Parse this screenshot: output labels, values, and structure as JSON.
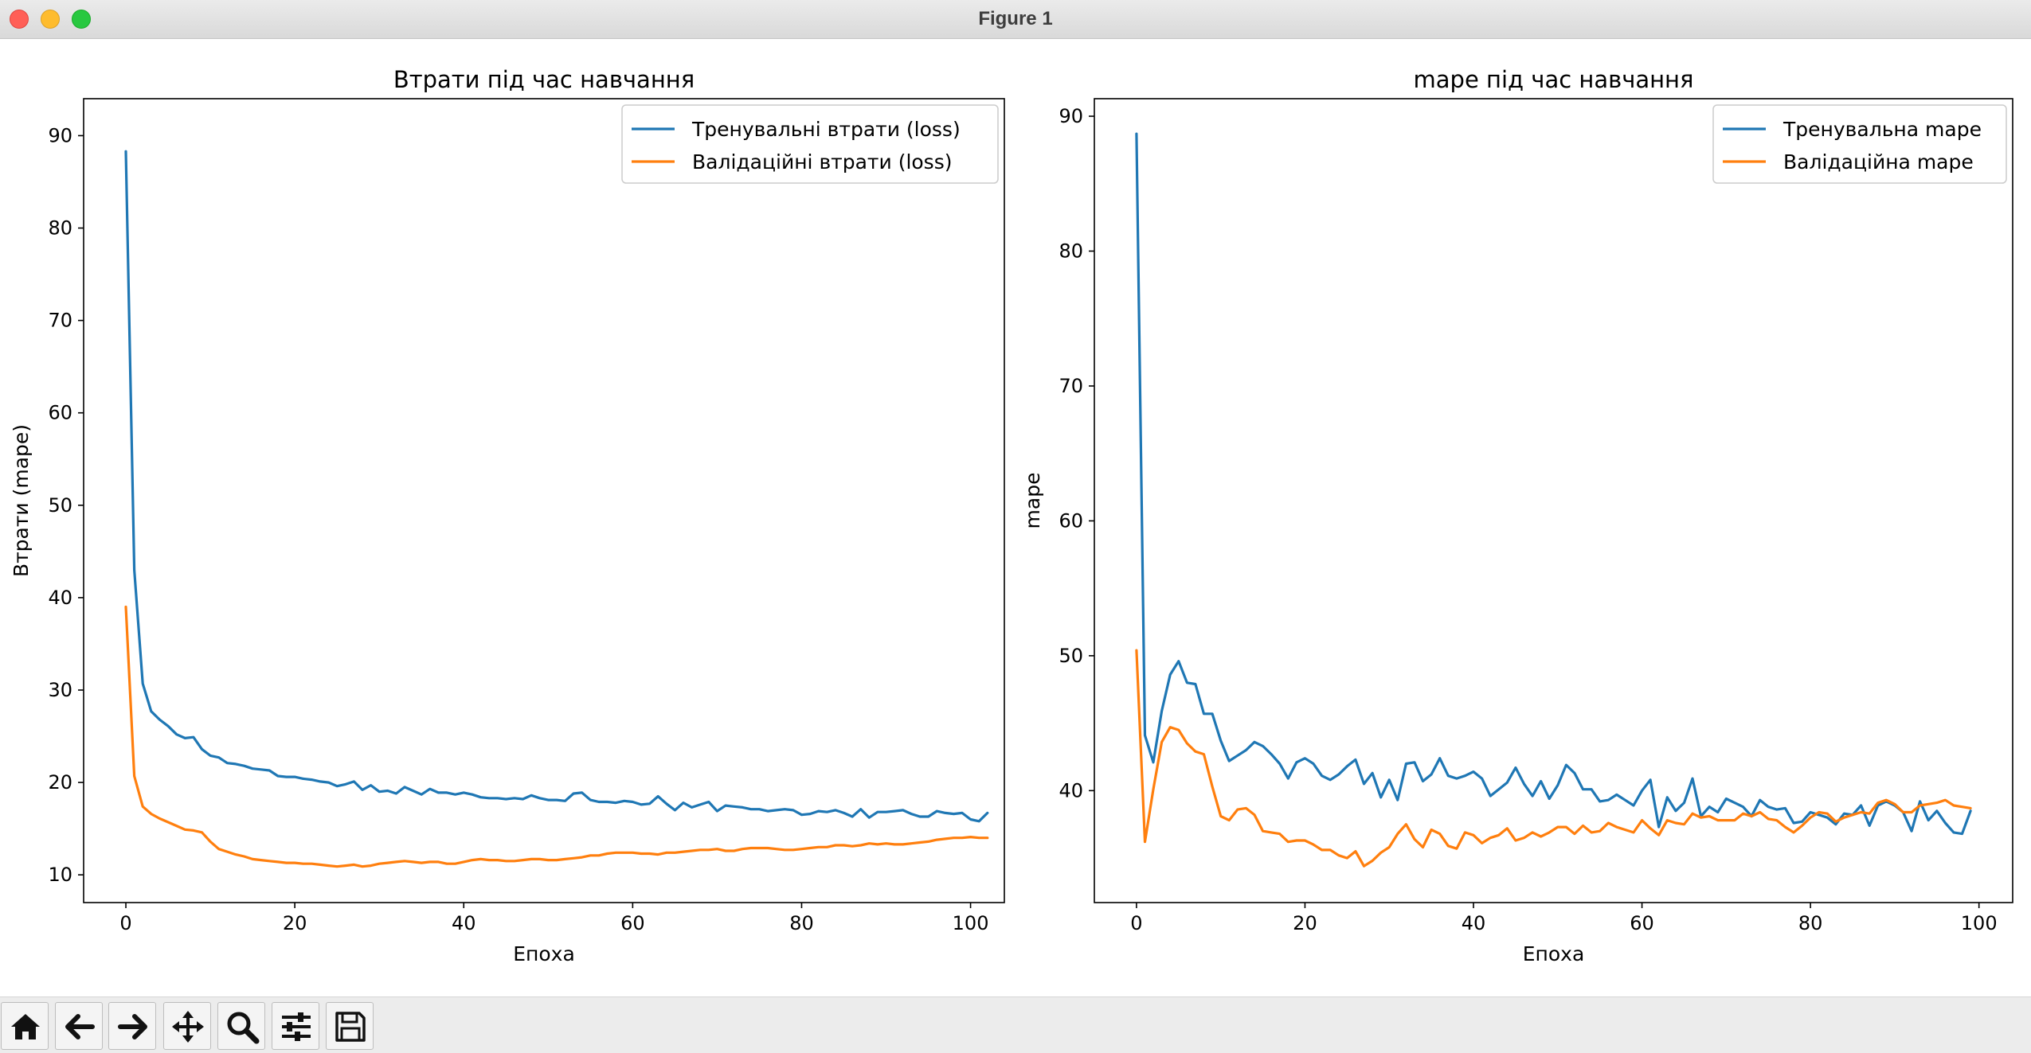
{
  "window": {
    "title": "Figure 1"
  },
  "toolbar": [
    {
      "name": "home-button",
      "icon": "home-icon"
    },
    {
      "name": "back-button",
      "icon": "arrow-left-icon"
    },
    {
      "name": "forward-button",
      "icon": "arrow-right-icon"
    },
    {
      "name": "pan-button",
      "icon": "move-icon"
    },
    {
      "name": "zoom-button",
      "icon": "search-icon"
    },
    {
      "name": "configure-subplots-button",
      "icon": "sliders-icon"
    },
    {
      "name": "save-button",
      "icon": "save-icon"
    }
  ],
  "chart_data": [
    {
      "type": "line",
      "title": "Втрати під час навчання",
      "xlabel": "Епоха",
      "ylabel": "Втрати (mape)",
      "xlim": [
        -5,
        104
      ],
      "ylim": [
        7,
        94
      ],
      "xticks": [
        0,
        20,
        40,
        60,
        80,
        100
      ],
      "yticks": [
        10,
        20,
        30,
        40,
        50,
        60,
        70,
        80,
        90
      ],
      "legend": "top-right",
      "grid": false,
      "x_start": 0,
      "series": [
        {
          "name": "Тренувальні втрати (loss)",
          "color": "#1f77b4",
          "values": [
            88.3,
            43.0,
            30.7,
            27.7,
            26.8,
            26.1,
            25.2,
            24.8,
            24.9,
            23.6,
            22.9,
            22.7,
            22.1,
            22.0,
            21.8,
            21.5,
            21.4,
            21.3,
            20.7,
            20.6,
            20.6,
            20.4,
            20.3,
            20.1,
            20.0,
            19.6,
            19.8,
            20.1,
            19.2,
            19.7,
            19.0,
            19.1,
            18.8,
            19.5,
            19.1,
            18.7,
            19.3,
            18.9,
            18.9,
            18.7,
            18.9,
            18.7,
            18.4,
            18.3,
            18.3,
            18.2,
            18.3,
            18.2,
            18.6,
            18.3,
            18.1,
            18.1,
            18.0,
            18.8,
            18.9,
            18.1,
            17.9,
            17.9,
            17.8,
            18.0,
            17.9,
            17.6,
            17.7,
            18.5,
            17.7,
            17.0,
            17.8,
            17.3,
            17.6,
            17.9,
            16.9,
            17.5,
            17.4,
            17.3,
            17.1,
            17.1,
            16.9,
            17.0,
            17.1,
            17.0,
            16.5,
            16.6,
            16.9,
            16.8,
            17.0,
            16.7,
            16.3,
            17.1,
            16.2,
            16.8,
            16.8,
            16.9,
            17.0,
            16.6,
            16.3,
            16.3,
            16.9,
            16.7,
            16.6,
            16.7,
            16.0,
            15.8,
            16.7
          ]
        },
        {
          "name": "Валідаційні втрати (loss)",
          "color": "#ff7f0e",
          "values": [
            39.0,
            20.7,
            17.4,
            16.6,
            16.1,
            15.7,
            15.3,
            14.9,
            14.8,
            14.6,
            13.6,
            12.8,
            12.5,
            12.2,
            12.0,
            11.7,
            11.6,
            11.5,
            11.4,
            11.3,
            11.3,
            11.2,
            11.2,
            11.1,
            11.0,
            10.9,
            11.0,
            11.1,
            10.9,
            11.0,
            11.2,
            11.3,
            11.4,
            11.5,
            11.4,
            11.3,
            11.4,
            11.4,
            11.2,
            11.2,
            11.4,
            11.6,
            11.7,
            11.6,
            11.6,
            11.5,
            11.5,
            11.6,
            11.7,
            11.7,
            11.6,
            11.6,
            11.7,
            11.8,
            11.9,
            12.1,
            12.1,
            12.3,
            12.4,
            12.4,
            12.4,
            12.3,
            12.3,
            12.2,
            12.4,
            12.4,
            12.5,
            12.6,
            12.7,
            12.7,
            12.8,
            12.6,
            12.6,
            12.8,
            12.9,
            12.9,
            12.9,
            12.8,
            12.7,
            12.7,
            12.8,
            12.9,
            13.0,
            13.0,
            13.2,
            13.2,
            13.1,
            13.2,
            13.4,
            13.3,
            13.4,
            13.3,
            13.3,
            13.4,
            13.5,
            13.6,
            13.8,
            13.9,
            14.0,
            14.0,
            14.1,
            14.0,
            14.0
          ]
        }
      ]
    },
    {
      "type": "line",
      "title": "mape під час навчання",
      "xlabel": "Епоха",
      "ylabel": "mape",
      "xlim": [
        -5,
        104
      ],
      "ylim": [
        31.7,
        91.3
      ],
      "xticks": [
        0,
        20,
        40,
        60,
        80,
        100
      ],
      "yticks": [
        40,
        50,
        60,
        70,
        80,
        90
      ],
      "legend": "top-right",
      "grid": false,
      "x_start": 0,
      "series": [
        {
          "name": "Тренувальна mape",
          "color": "#1f77b4",
          "values": [
            88.7,
            44.1,
            42.1,
            45.9,
            48.6,
            49.6,
            48.0,
            47.9,
            45.7,
            45.7,
            43.7,
            42.2,
            42.6,
            43.0,
            43.6,
            43.3,
            42.7,
            42.0,
            40.9,
            42.1,
            42.4,
            42.0,
            41.1,
            40.8,
            41.2,
            41.8,
            42.3,
            40.5,
            41.3,
            39.5,
            40.8,
            39.3,
            42.0,
            42.1,
            40.7,
            41.2,
            42.4,
            41.1,
            40.9,
            41.1,
            41.4,
            40.9,
            39.6,
            40.1,
            40.6,
            41.7,
            40.5,
            39.6,
            40.7,
            39.4,
            40.4,
            41.9,
            41.3,
            40.1,
            40.1,
            39.2,
            39.3,
            39.7,
            39.3,
            38.9,
            40.0,
            40.8,
            37.3,
            39.5,
            38.5,
            39.1,
            40.9,
            38.1,
            38.8,
            38.4,
            39.4,
            39.1,
            38.8,
            38.1,
            39.3,
            38.8,
            38.6,
            38.7,
            37.6,
            37.7,
            38.4,
            38.2,
            38.0,
            37.5,
            38.3,
            38.2,
            38.9,
            37.4,
            38.9,
            39.2,
            38.9,
            38.4,
            37.0,
            39.2,
            37.8,
            38.5,
            37.6,
            36.9,
            36.8,
            38.5
          ]
        },
        {
          "name": "Валідаційна mape",
          "color": "#ff7f0e",
          "values": [
            50.4,
            36.2,
            40.1,
            43.6,
            44.7,
            44.5,
            43.5,
            42.9,
            42.7,
            40.3,
            38.1,
            37.8,
            38.6,
            38.7,
            38.2,
            37.0,
            36.9,
            36.8,
            36.2,
            36.3,
            36.3,
            36.0,
            35.6,
            35.6,
            35.2,
            35.0,
            35.5,
            34.4,
            34.8,
            35.4,
            35.8,
            36.8,
            37.5,
            36.4,
            35.8,
            37.1,
            36.8,
            35.9,
            35.7,
            36.9,
            36.7,
            36.1,
            36.5,
            36.7,
            37.2,
            36.3,
            36.5,
            36.9,
            36.6,
            36.9,
            37.3,
            37.3,
            36.8,
            37.4,
            36.9,
            37.0,
            37.6,
            37.3,
            37.1,
            36.9,
            37.8,
            37.2,
            36.7,
            37.8,
            37.6,
            37.5,
            38.3,
            38.0,
            38.1,
            37.8,
            37.8,
            37.8,
            38.3,
            38.1,
            38.4,
            37.9,
            37.8,
            37.3,
            36.9,
            37.4,
            38.0,
            38.4,
            38.3,
            37.7,
            38.0,
            38.2,
            38.4,
            38.3,
            39.1,
            39.3,
            39.0,
            38.4,
            38.4,
            38.9,
            39.0,
            39.1,
            39.3,
            38.9,
            38.8,
            38.7
          ]
        }
      ]
    }
  ]
}
